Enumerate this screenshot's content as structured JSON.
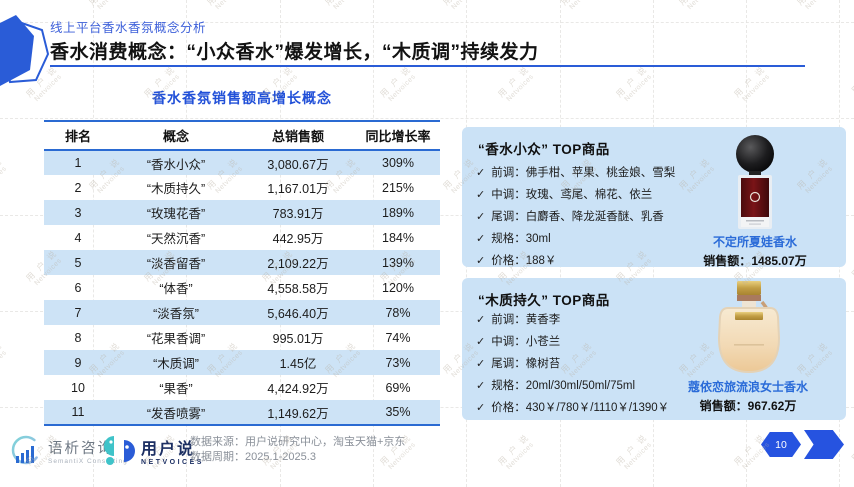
{
  "header": {
    "eyebrow": "线上平台香水香氛概念分析",
    "title": "香水消费概念：“小众香水”爆发增长，“木质调”持续发力"
  },
  "table": {
    "title": "香水香氛销售额高增长概念",
    "columns": [
      "排名",
      "概念",
      "总销售额",
      "同比增长率"
    ],
    "rows": [
      [
        "1",
        "“香水小众”",
        "3,080.67万",
        "309%"
      ],
      [
        "2",
        "“木质持久”",
        "1,167.01万",
        "215%"
      ],
      [
        "3",
        "“玫瑰花香”",
        "783.91万",
        "189%"
      ],
      [
        "4",
        "“天然沉香”",
        "442.95万",
        "184%"
      ],
      [
        "5",
        "“淡香留香”",
        "2,109.22万",
        "139%"
      ],
      [
        "6",
        "“体香”",
        "4,558.58万",
        "120%"
      ],
      [
        "7",
        "“淡香氛”",
        "5,646.40万",
        "78%"
      ],
      [
        "8",
        "“花果香调”",
        "995.01万",
        "74%"
      ],
      [
        "9",
        "“木质调”",
        "1.45亿",
        "73%"
      ],
      [
        "10",
        "“果香”",
        "4,424.92万",
        "69%"
      ],
      [
        "11",
        "“发香喷雾”",
        "1,149.62万",
        "35%"
      ]
    ]
  },
  "cards": [
    {
      "title": "“香水小众” TOP商品",
      "bullets": [
        "前调：佛手柑、苹果、桃金娘、雪梨",
        "中调：玫瑰、鸢尾、棉花、依兰",
        "尾调：白麝香、降龙涎香醚、乳香",
        "规格：30ml",
        "价格：188￥"
      ],
      "product_name": "不定所夏娃香水",
      "sales_label": "销售额：",
      "sales_value": "1485.07万"
    },
    {
      "title": "“木质持久” TOP商品",
      "bullets": [
        "前调：黄香李",
        "中调：小苍兰",
        "尾调：橡树苔",
        "规格：20ml/30ml/50ml/75ml",
        "价格：430￥/780￥/1110￥/1390￥"
      ],
      "product_name": "蔻依恋旅流浪女士香水",
      "sales_label": "销售额：",
      "sales_value": "967.62万"
    }
  ],
  "footer": {
    "logo1_name": "语析咨询",
    "logo1_sub": "SemantiX Consulting",
    "logo2_name": "用户说",
    "logo2_sub": "NETVOICES",
    "source_line1": "数据来源：用户说研究中心，淘宝天猫+京东",
    "source_line2": "数据周期：2025.1-2025.3",
    "page_number": "10"
  },
  "watermark": {
    "text_cn": "用 户 说",
    "text_en": "Netvoices"
  },
  "icons": {
    "check": "✓"
  },
  "colors": {
    "accent_blue": "#2a5cd7",
    "table_line_blue": "#2a6ad2",
    "row_highlight": "#cde3f6",
    "card_bg": "#cbe2f6",
    "product_link_blue": "#2a6bd8",
    "footer_gray": "#8a9099",
    "watermark_gray": "#b9b0a2"
  }
}
